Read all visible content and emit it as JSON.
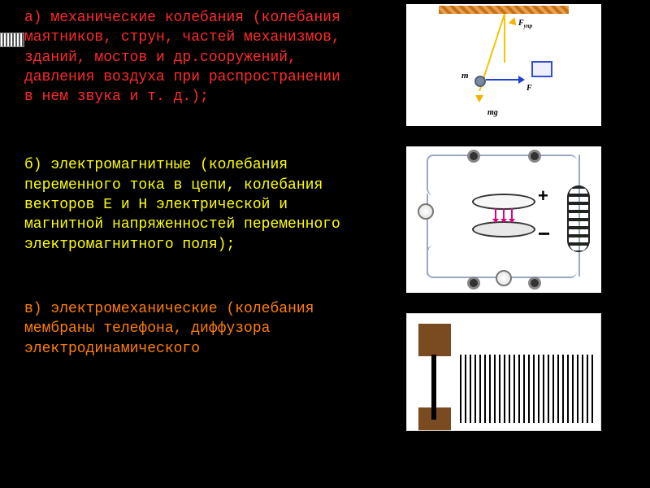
{
  "blocks": {
    "a": {
      "title": "а) механические колебания",
      "body": "(колебания маятников, струн, частей механизмов, зданий, мостов и др.сооружений, давления воздуха при распространении в нем звука и т. д.);",
      "color": "#ff2a2a"
    },
    "b": {
      "title": "б) электромагнитные",
      "body": "(колебания переменного тока в цепи, колебания векторов Е и Н электрической и магнитной напряженностей переменного электромагнитного поля);",
      "color": "#ffff00"
    },
    "c": {
      "title": "в) электромеханические",
      "body": "(колебания мембраны телефона, диффузора электродинамического",
      "color": "#ff7f00"
    }
  },
  "pendulum": {
    "labels": {
      "mass": "m",
      "weight": "mg",
      "tension": "F",
      "up": "F"
    },
    "colors": {
      "string": "#f5c400",
      "bob": "#7a8aa0",
      "arrow_blue": "#2040d0",
      "ceiling": "#c87014"
    }
  },
  "em": {
    "labels": {
      "plus": "+",
      "minus": "−"
    },
    "colors": {
      "plate": "#333333",
      "field_arrow": "#e00080",
      "wire": "#9aa7c7",
      "coil": "#222222"
    }
  },
  "membrane": {
    "colors": {
      "base": "#7a4a20",
      "stem": "#000000",
      "line": "#000000"
    },
    "line_count": 28
  },
  "typography": {
    "font_family": "Courier New, monospace",
    "font_size_pt": 14,
    "background": "#000000"
  }
}
